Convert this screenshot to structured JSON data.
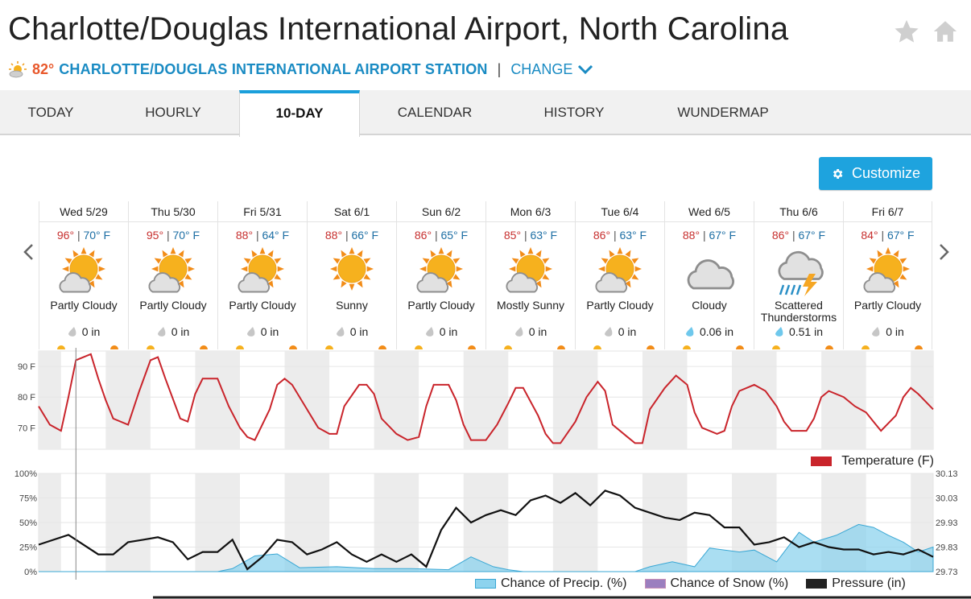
{
  "page_title": "Charlotte/Douglas International Airport, North Carolina",
  "current": {
    "temp": "82°",
    "station": "CHARLOTTE/DOUGLAS INTERNATIONAL AIRPORT STATION",
    "separator": "|",
    "change_label": "CHANGE"
  },
  "tabs": [
    {
      "label": "TODAY"
    },
    {
      "label": "HOURLY"
    },
    {
      "label": "10-DAY",
      "active": true
    },
    {
      "label": "CALENDAR"
    },
    {
      "label": "HISTORY"
    },
    {
      "label": "WUNDERMAP"
    }
  ],
  "customize_label": "Customize",
  "icons": {
    "favorite": "star-icon",
    "home": "home-icon",
    "prev": "chevron-left-icon",
    "next": "chevron-right-icon",
    "settings": "gear-icon"
  },
  "days": [
    {
      "date": "Wed 5/29",
      "hi": "96°",
      "lo": "70°",
      "unit": "F",
      "icon": "partly-cloudy",
      "cond1": "Partly Cloudy",
      "cond2": "",
      "precip": "0 in",
      "wet": false
    },
    {
      "date": "Thu 5/30",
      "hi": "95°",
      "lo": "70°",
      "unit": "F",
      "icon": "partly-cloudy",
      "cond1": "Partly Cloudy",
      "cond2": "",
      "precip": "0 in",
      "wet": false
    },
    {
      "date": "Fri 5/31",
      "hi": "88°",
      "lo": "64°",
      "unit": "F",
      "icon": "partly-cloudy",
      "cond1": "Partly Cloudy",
      "cond2": "",
      "precip": "0 in",
      "wet": false
    },
    {
      "date": "Sat 6/1",
      "hi": "88°",
      "lo": "66°",
      "unit": "F",
      "icon": "sunny",
      "cond1": "Sunny",
      "cond2": "",
      "precip": "0 in",
      "wet": false
    },
    {
      "date": "Sun 6/2",
      "hi": "86°",
      "lo": "65°",
      "unit": "F",
      "icon": "partly-cloudy",
      "cond1": "Partly Cloudy",
      "cond2": "",
      "precip": "0 in",
      "wet": false
    },
    {
      "date": "Mon 6/3",
      "hi": "85°",
      "lo": "63°",
      "unit": "F",
      "icon": "partly-cloudy",
      "cond1": "Mostly Sunny",
      "cond2": "",
      "precip": "0 in",
      "wet": false
    },
    {
      "date": "Tue 6/4",
      "hi": "86°",
      "lo": "63°",
      "unit": "F",
      "icon": "partly-cloudy",
      "cond1": "Partly Cloudy",
      "cond2": "",
      "precip": "0 in",
      "wet": false
    },
    {
      "date": "Wed 6/5",
      "hi": "88°",
      "lo": "67°",
      "unit": "F",
      "icon": "cloudy",
      "cond1": "Cloudy",
      "cond2": "",
      "precip": "0.06 in",
      "wet": true
    },
    {
      "date": "Thu 6/6",
      "hi": "86°",
      "lo": "67°",
      "unit": "F",
      "icon": "tstorms",
      "cond1": "Scattered",
      "cond2": "Thunderstorms",
      "precip": "0.51 in",
      "wet": true
    },
    {
      "date": "Fri 6/7",
      "hi": "84°",
      "lo": "67°",
      "unit": "F",
      "icon": "partly-cloudy",
      "cond1": "Partly Cloudy",
      "cond2": "",
      "precip": "0 in",
      "wet": false
    }
  ],
  "chart_data": [
    {
      "type": "line",
      "ylabel": "",
      "yticks": [
        "70 F",
        "80 F",
        "90 F"
      ],
      "ylim": [
        63,
        95
      ],
      "series": [
        {
          "name": "Temperature (F)",
          "color": "#c9242b",
          "x_hours": [
            0,
            3,
            6,
            8,
            10,
            14,
            16,
            18,
            20,
            24,
            27,
            30,
            32,
            34,
            38,
            40,
            42,
            44,
            48,
            51,
            54,
            56,
            58,
            62,
            64,
            66,
            68,
            72,
            75,
            78,
            80,
            82,
            86,
            88,
            90,
            92,
            96,
            99,
            102,
            104,
            106,
            110,
            112,
            114,
            116,
            120,
            123,
            126,
            128,
            130,
            134,
            136,
            138,
            140,
            144,
            147,
            150,
            152,
            154,
            158,
            160,
            162,
            164,
            168,
            171,
            174,
            176,
            178,
            182,
            184,
            186,
            188,
            192,
            195,
            198,
            200,
            202,
            206,
            208,
            210,
            212,
            216,
            219,
            222,
            224,
            226,
            230,
            232,
            234,
            236,
            240
          ],
          "values": [
            77,
            71,
            69,
            80,
            92,
            94,
            86,
            79,
            73,
            71,
            82,
            92,
            93,
            86,
            73,
            72,
            81,
            86,
            86,
            77,
            70,
            67,
            66,
            76,
            84,
            86,
            84,
            76,
            70,
            68,
            68,
            77,
            84,
            84,
            81,
            73,
            68,
            66,
            67,
            77,
            84,
            84,
            79,
            71,
            66,
            66,
            71,
            78,
            83,
            83,
            74,
            68,
            65,
            65,
            72,
            80,
            85,
            82,
            71,
            67,
            65,
            65,
            76,
            83,
            87,
            84,
            75,
            70,
            68,
            69,
            77,
            82,
            84,
            82,
            77,
            72,
            69,
            69,
            73,
            80,
            82,
            80,
            77,
            75,
            72,
            69,
            74,
            80,
            83,
            81,
            76
          ]
        }
      ]
    },
    {
      "type": "line",
      "yticks_left": [
        "0%",
        "25%",
        "50%",
        "75%",
        "100%"
      ],
      "yticks_right": [
        "29.73",
        "29.83",
        "29.93",
        "30.03",
        "30.13"
      ],
      "ylim_left": [
        0,
        100
      ],
      "ylim_right": [
        29.73,
        30.13
      ],
      "series": [
        {
          "name": "Chance of Precip. (%)",
          "color": "#8dd3ee",
          "x_hours": [
            0,
            48,
            52,
            58,
            64,
            70,
            80,
            90,
            100,
            110,
            116,
            122,
            126,
            130,
            140,
            152,
            160,
            164,
            170,
            176,
            180,
            188,
            192,
            198,
            204,
            208,
            214,
            220,
            224,
            228,
            232,
            236,
            240
          ],
          "values": [
            0,
            0,
            3,
            16,
            18,
            4,
            5,
            3,
            3,
            2,
            15,
            5,
            2,
            0,
            0,
            0,
            0,
            5,
            10,
            5,
            24,
            20,
            22,
            10,
            40,
            30,
            37,
            48,
            45,
            37,
            30,
            20,
            25
          ]
        },
        {
          "name": "Chance of Snow (%)",
          "color": "#9b7fbf",
          "x_hours": [
            0,
            240
          ],
          "values": [
            0,
            0
          ]
        },
        {
          "name": "Pressure (in)",
          "color": "#111111",
          "x_hours": [
            0,
            8,
            10,
            16,
            20,
            24,
            28,
            32,
            36,
            40,
            44,
            48,
            52,
            56,
            60,
            64,
            68,
            72,
            76,
            80,
            84,
            88,
            92,
            96,
            100,
            104,
            108,
            112,
            116,
            120,
            124,
            128,
            132,
            136,
            140,
            144,
            148,
            152,
            156,
            160,
            164,
            168,
            172,
            176,
            180,
            184,
            188,
            192,
            196,
            200,
            204,
            208,
            212,
            216,
            220,
            224,
            228,
            232,
            236,
            240
          ],
          "values": [
            29.84,
            29.88,
            29.86,
            29.8,
            29.8,
            29.85,
            29.86,
            29.87,
            29.85,
            29.78,
            29.81,
            29.81,
            29.86,
            29.74,
            29.79,
            29.86,
            29.85,
            29.8,
            29.82,
            29.85,
            29.8,
            29.77,
            29.8,
            29.77,
            29.8,
            29.75,
            29.9,
            29.99,
            29.93,
            29.96,
            29.98,
            29.96,
            30.02,
            30.04,
            30.01,
            30.05,
            30.0,
            30.06,
            30.04,
            29.99,
            29.97,
            29.95,
            29.94,
            29.97,
            29.96,
            29.91,
            29.91,
            29.84,
            29.85,
            29.87,
            29.83,
            29.85,
            29.83,
            29.82,
            29.82,
            29.8,
            29.81,
            29.8,
            29.82,
            29.79
          ]
        }
      ],
      "legend": [
        "Chance of Precip. (%)",
        "Chance of Snow (%)",
        "Pressure (in)"
      ]
    }
  ]
}
